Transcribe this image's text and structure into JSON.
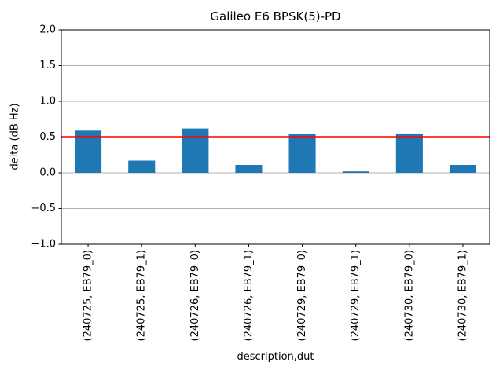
{
  "chart_data": {
    "type": "bar",
    "title": "Galileo E6 BPSK(5)-PD",
    "xlabel": "description,dut",
    "ylabel": "delta (dB Hz)",
    "categories": [
      "(240725, EB79_0)",
      "(240725, EB79_1)",
      "(240726, EB79_0)",
      "(240726, EB79_1)",
      "(240729, EB79_0)",
      "(240729, EB79_1)",
      "(240730, EB79_0)",
      "(240730, EB79_1)"
    ],
    "values": [
      0.59,
      0.17,
      0.62,
      0.11,
      0.54,
      0.02,
      0.55,
      0.11
    ],
    "ylim": [
      -1.0,
      2.0
    ],
    "yticks": [
      2.0,
      1.5,
      1.0,
      0.5,
      0.0,
      -0.5,
      -1.0
    ],
    "reference_line": {
      "y": 0.5,
      "color": "#ff0000"
    },
    "bar_color": "#1f77b4",
    "bar_width_fraction": 0.5,
    "grid": true,
    "grid_color": "#b0b0b0",
    "spine_color": "#000000",
    "x_tick_rotation": 90,
    "legend_position": "none"
  }
}
